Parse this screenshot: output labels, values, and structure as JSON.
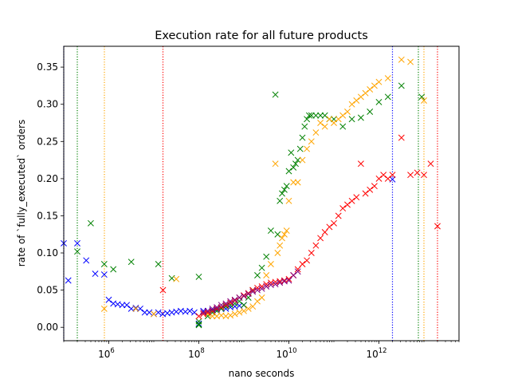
{
  "chart_data": {
    "type": "scatter",
    "title": "Execution rate for all future products",
    "xlabel": "nano seconds",
    "ylabel": "rate of `fully_executed` orders",
    "x_scale": "log",
    "xlim": [
      100000,
      60000000000000
    ],
    "ylim": [
      -0.018,
      0.378
    ],
    "x_ticks": [
      {
        "value": 1000000,
        "base": "10",
        "exp": "6"
      },
      {
        "value": 100000000,
        "base": "10",
        "exp": "8"
      },
      {
        "value": 10000000000,
        "base": "10",
        "exp": "10"
      },
      {
        "value": 1000000000000,
        "base": "10",
        "exp": "12"
      }
    ],
    "y_ticks": [
      {
        "value": 0.0,
        "label": "0.00"
      },
      {
        "value": 0.05,
        "label": "0.05"
      },
      {
        "value": 0.1,
        "label": "0.10"
      },
      {
        "value": 0.15,
        "label": "0.15"
      },
      {
        "value": 0.2,
        "label": "0.20"
      },
      {
        "value": 0.25,
        "label": "0.25"
      },
      {
        "value": 0.3,
        "label": "0.30"
      },
      {
        "value": 0.35,
        "label": "0.35"
      }
    ],
    "grid": false,
    "legend": "none",
    "marker": "x",
    "series": [
      {
        "color": "#0000ff",
        "vline_x": [
          100000,
          2000000000000
        ],
        "points": [
          [
            100000,
            0.113
          ],
          [
            126000,
            0.063
          ],
          [
            200000,
            0.113
          ],
          [
            316000,
            0.09
          ],
          [
            501000,
            0.072
          ],
          [
            794000,
            0.071
          ],
          [
            1000000,
            0.037
          ],
          [
            1260000,
            0.032
          ],
          [
            1580000,
            0.031
          ],
          [
            2000000,
            0.03
          ],
          [
            2510000,
            0.03
          ],
          [
            3160000,
            0.025
          ],
          [
            3980000,
            0.026
          ],
          [
            5010000,
            0.025
          ],
          [
            6310000,
            0.02
          ],
          [
            7940000,
            0.02
          ],
          [
            10000000,
            0.018
          ],
          [
            12600000,
            0.02
          ],
          [
            15800000,
            0.018
          ],
          [
            20000000,
            0.019
          ],
          [
            25100000,
            0.02
          ],
          [
            31600000,
            0.021
          ],
          [
            39800000,
            0.022
          ],
          [
            50100000,
            0.021
          ],
          [
            63100000,
            0.022
          ],
          [
            79400000,
            0.02
          ],
          [
            100000000,
            0.005
          ],
          [
            126000000,
            0.022
          ],
          [
            158000000,
            0.022
          ],
          [
            200000000,
            0.023
          ],
          [
            251000000,
            0.024
          ],
          [
            316000000,
            0.025
          ],
          [
            398000000,
            0.025
          ],
          [
            501000000,
            0.027
          ],
          [
            631000000,
            0.028
          ],
          [
            794000000,
            0.029
          ],
          [
            1000000000,
            0.03
          ],
          [
            2000000000000,
            0.199
          ]
        ]
      },
      {
        "color": "#008000",
        "vline_x": [
          200000,
          7500000000000
        ],
        "points": [
          [
            200000,
            0.102
          ],
          [
            398000,
            0.14
          ],
          [
            794000,
            0.085
          ],
          [
            1260000,
            0.078
          ],
          [
            3160000,
            0.088
          ],
          [
            12600000,
            0.085
          ],
          [
            25100000,
            0.066
          ],
          [
            100000000,
            0.068
          ],
          [
            100000000,
            0.003
          ],
          [
            100000000,
            0.008
          ],
          [
            100000000,
            0.004
          ],
          [
            158000000,
            0.015
          ],
          [
            200000000,
            0.02
          ],
          [
            251000000,
            0.022
          ],
          [
            316000000,
            0.025
          ],
          [
            398000000,
            0.028
          ],
          [
            501000000,
            0.03
          ],
          [
            631000000,
            0.032
          ],
          [
            794000000,
            0.035
          ],
          [
            1000000000,
            0.03
          ],
          [
            1260000000,
            0.04
          ],
          [
            1580000000,
            0.05
          ],
          [
            2000000000,
            0.07
          ],
          [
            2510000000,
            0.08
          ],
          [
            3160000000,
            0.095
          ],
          [
            3980000000,
            0.13
          ],
          [
            5010000000,
            0.313
          ],
          [
            5620000000,
            0.125
          ],
          [
            6310000000,
            0.17
          ],
          [
            7080000000,
            0.18
          ],
          [
            7940000000,
            0.185
          ],
          [
            8910000000,
            0.19
          ],
          [
            10000000000,
            0.21
          ],
          [
            11200000000,
            0.235
          ],
          [
            12600000000,
            0.215
          ],
          [
            14100000000,
            0.22
          ],
          [
            15800000000,
            0.225
          ],
          [
            17800000000,
            0.24
          ],
          [
            20000000000,
            0.255
          ],
          [
            22400000000,
            0.27
          ],
          [
            25100000000,
            0.28
          ],
          [
            28200000000,
            0.285
          ],
          [
            31600000000,
            0.285
          ],
          [
            39800000000,
            0.285
          ],
          [
            50100000000,
            0.285
          ],
          [
            63100000000,
            0.285
          ],
          [
            79400000000,
            0.28
          ],
          [
            100000000000,
            0.28
          ],
          [
            158000000000,
            0.27
          ],
          [
            251000000000,
            0.28
          ],
          [
            398000000000,
            0.282
          ],
          [
            631000000000,
            0.29
          ],
          [
            1000000000000,
            0.303
          ],
          [
            1580000000000,
            0.31
          ],
          [
            3160000000000,
            0.325
          ],
          [
            8910000000000,
            0.31
          ]
        ]
      },
      {
        "color": "#ffa500",
        "vline_x": [
          800000,
          10000000000000
        ],
        "points": [
          [
            794000,
            0.025
          ],
          [
            3980000,
            0.025
          ],
          [
            10000000,
            0.018
          ],
          [
            31600000,
            0.065
          ],
          [
            158000000,
            0.018
          ],
          [
            200000000,
            0.015
          ],
          [
            251000000,
            0.015
          ],
          [
            316000000,
            0.016
          ],
          [
            398000000,
            0.015
          ],
          [
            501000000,
            0.016
          ],
          [
            631000000,
            0.018
          ],
          [
            794000000,
            0.02
          ],
          [
            1000000000,
            0.022
          ],
          [
            1260000000,
            0.025
          ],
          [
            1580000000,
            0.028
          ],
          [
            2000000000,
            0.035
          ],
          [
            2510000000,
            0.04
          ],
          [
            3160000000,
            0.07
          ],
          [
            3980000000,
            0.085
          ],
          [
            5010000000,
            0.22
          ],
          [
            5620000000,
            0.1
          ],
          [
            6310000000,
            0.11
          ],
          [
            7080000000,
            0.12
          ],
          [
            7940000000,
            0.125
          ],
          [
            8910000000,
            0.13
          ],
          [
            10000000000,
            0.17
          ],
          [
            12600000000,
            0.195
          ],
          [
            15800000000,
            0.195
          ],
          [
            20000000000,
            0.225
          ],
          [
            25100000000,
            0.24
          ],
          [
            31600000000,
            0.25
          ],
          [
            39800000000,
            0.262
          ],
          [
            50100000000,
            0.275
          ],
          [
            63100000000,
            0.27
          ],
          [
            79400000000,
            0.28
          ],
          [
            100000000000,
            0.275
          ],
          [
            126000000000,
            0.28
          ],
          [
            158000000000,
            0.285
          ],
          [
            200000000000,
            0.29
          ],
          [
            251000000000,
            0.3
          ],
          [
            316000000000,
            0.305
          ],
          [
            398000000000,
            0.31
          ],
          [
            501000000000,
            0.315
          ],
          [
            631000000000,
            0.32
          ],
          [
            794000000000,
            0.325
          ],
          [
            1000000000000,
            0.33
          ],
          [
            1580000000000,
            0.335
          ],
          [
            3160000000000,
            0.36
          ],
          [
            5010000000000,
            0.357
          ],
          [
            10000000000000,
            0.305
          ]
        ]
      },
      {
        "color": "#ff0000",
        "vline_x": [
          16000000,
          20000000000000
        ],
        "points": [
          [
            16000000,
            0.05
          ],
          [
            100000000,
            0.015
          ],
          [
            126000000,
            0.018
          ],
          [
            158000000,
            0.02
          ],
          [
            200000000,
            0.022
          ],
          [
            251000000,
            0.025
          ],
          [
            316000000,
            0.027
          ],
          [
            398000000,
            0.03
          ],
          [
            501000000,
            0.033
          ],
          [
            631000000,
            0.036
          ],
          [
            794000000,
            0.04
          ],
          [
            1000000000,
            0.043
          ],
          [
            1260000000,
            0.046
          ],
          [
            1580000000,
            0.05
          ],
          [
            2000000000,
            0.053
          ],
          [
            2510000000,
            0.055
          ],
          [
            3160000000,
            0.058
          ],
          [
            3980000000,
            0.06
          ],
          [
            5010000000,
            0.061
          ],
          [
            6310000000,
            0.062
          ],
          [
            7940000000,
            0.063
          ],
          [
            10000000000,
            0.065
          ],
          [
            12600000000,
            0.07
          ],
          [
            15800000000,
            0.078
          ],
          [
            20000000000,
            0.085
          ],
          [
            25100000000,
            0.09
          ],
          [
            31600000000,
            0.1
          ],
          [
            39800000000,
            0.11
          ],
          [
            50100000000,
            0.12
          ],
          [
            63100000000,
            0.128
          ],
          [
            79400000000,
            0.135
          ],
          [
            100000000000,
            0.14
          ],
          [
            126000000000,
            0.15
          ],
          [
            158000000000,
            0.16
          ],
          [
            200000000000,
            0.165
          ],
          [
            251000000000,
            0.17
          ],
          [
            316000000000,
            0.175
          ],
          [
            398000000000,
            0.22
          ],
          [
            501000000000,
            0.18
          ],
          [
            631000000000,
            0.185
          ],
          [
            794000000000,
            0.19
          ],
          [
            1000000000000,
            0.2
          ],
          [
            1260000000000,
            0.205
          ],
          [
            1580000000000,
            0.2
          ],
          [
            2000000000000,
            0.205
          ],
          [
            3160000000000,
            0.255
          ],
          [
            5010000000000,
            0.205
          ],
          [
            7080000000000,
            0.208
          ],
          [
            10000000000000,
            0.205
          ],
          [
            14100000000000,
            0.22
          ],
          [
            20000000000000,
            0.136
          ]
        ]
      },
      {
        "color": "#800080",
        "vline_x": [],
        "points": [
          [
            126000000,
            0.02
          ],
          [
            158000000,
            0.022
          ],
          [
            200000000,
            0.025
          ],
          [
            251000000,
            0.027
          ],
          [
            316000000,
            0.03
          ],
          [
            398000000,
            0.032
          ],
          [
            501000000,
            0.035
          ],
          [
            631000000,
            0.037
          ],
          [
            794000000,
            0.04
          ],
          [
            1000000000,
            0.042
          ],
          [
            1260000000,
            0.045
          ],
          [
            1580000000,
            0.048
          ],
          [
            2000000000,
            0.05
          ],
          [
            2510000000,
            0.052
          ],
          [
            3160000000,
            0.055
          ],
          [
            3980000000,
            0.057
          ],
          [
            5010000000,
            0.058
          ],
          [
            6310000000,
            0.06
          ],
          [
            7940000000,
            0.062
          ],
          [
            10000000000,
            0.063
          ],
          [
            12600000000,
            0.07
          ],
          [
            15800000000,
            0.075
          ]
        ]
      }
    ]
  }
}
